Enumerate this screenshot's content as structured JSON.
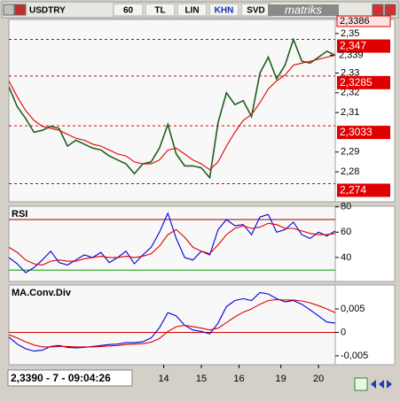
{
  "toolbar": {
    "symbol": "USDTRY",
    "items": [
      "60",
      "TL",
      "LIN",
      "KHN",
      "SVD"
    ],
    "brand": "matriks"
  },
  "status": "2,3390 - 7 - 09:04:26",
  "chart_data": [
    {
      "type": "line",
      "xlim": [
        0,
        39
      ],
      "ylim": [
        2.2648,
        2.3571
      ],
      "yticks": [
        {
          "value": 2.28,
          "label": "2,28"
        },
        {
          "value": 2.29,
          "label": "2,29"
        },
        {
          "value": 2.31,
          "label": "2,31"
        },
        {
          "value": 2.32,
          "label": "2,32"
        },
        {
          "value": 2.33,
          "label": "2,33"
        },
        {
          "value": 2.35,
          "label": "2,35"
        }
      ],
      "levels": [
        {
          "value": 2.347,
          "label": "2,347"
        },
        {
          "value": 2.3285,
          "label": "2,3285"
        },
        {
          "value": 2.3033,
          "label": "2,3033"
        },
        {
          "value": 2.274,
          "label": "2,274"
        }
      ],
      "level_color": "#e00000",
      "last_label": {
        "value": 2.339,
        "label": "2,339"
      },
      "cursor_label": "2,3386",
      "series": [
        {
          "color": "#1f5f1f",
          "values": [
            2.323,
            2.313,
            2.307,
            2.3,
            2.301,
            2.303,
            2.302,
            2.293,
            2.296,
            2.294,
            2.292,
            2.291,
            2.288,
            2.286,
            2.284,
            2.279,
            2.284,
            2.285,
            2.292,
            2.304,
            2.289,
            2.283,
            2.283,
            2.282,
            2.277,
            2.305,
            2.32,
            2.314,
            2.316,
            2.308,
            2.33,
            2.338,
            2.327,
            2.334,
            2.347,
            2.336,
            2.335,
            2.338,
            2.341,
            2.339
          ]
        },
        {
          "color": "#e00000",
          "values": [
            2.326,
            2.318,
            2.311,
            2.306,
            2.303,
            2.302,
            2.301,
            2.299,
            2.297,
            2.296,
            2.294,
            2.293,
            2.291,
            2.289,
            2.288,
            2.285,
            2.284,
            2.284,
            2.286,
            2.291,
            2.292,
            2.289,
            2.286,
            2.284,
            2.281,
            2.285,
            2.293,
            2.3,
            2.306,
            2.309,
            2.315,
            2.322,
            2.326,
            2.329,
            2.334,
            2.335,
            2.336,
            2.337,
            2.338,
            2.339
          ]
        }
      ]
    },
    {
      "type": "line",
      "title": "RSI",
      "xlim": [
        0,
        39
      ],
      "ylim": [
        21,
        80.5
      ],
      "yticks": [
        40,
        60,
        80
      ],
      "hlines": [
        {
          "value": 70,
          "color": "#990000"
        },
        {
          "value": 30,
          "color": "#009900"
        }
      ],
      "series": [
        {
          "color": "#0000e0",
          "values": [
            40,
            35,
            28,
            32,
            38,
            45,
            36,
            34,
            38,
            42,
            40,
            44,
            36,
            40,
            45,
            35,
            42,
            48,
            60,
            75,
            55,
            40,
            38,
            45,
            42,
            62,
            70,
            65,
            66,
            58,
            72,
            74,
            60,
            62,
            68,
            58,
            55,
            60,
            57,
            61
          ]
        },
        {
          "color": "#e00000",
          "values": [
            48,
            44,
            38,
            35,
            34,
            37,
            38,
            37,
            37,
            39,
            40,
            41,
            40,
            40,
            41,
            40,
            41,
            43,
            49,
            58,
            62,
            56,
            48,
            45,
            43,
            50,
            58,
            63,
            65,
            63,
            64,
            67,
            66,
            63,
            63,
            61,
            59,
            58,
            58,
            59
          ]
        }
      ]
    },
    {
      "type": "line",
      "title": "MA.Conv.Div",
      "xlim": [
        0,
        39
      ],
      "ylim": [
        -0.0069,
        0.0101
      ],
      "yticks": [
        {
          "value": 0.005,
          "label": "0,005"
        },
        0,
        {
          "value": -0.005,
          "label": "-0,005"
        }
      ],
      "hlines": [
        {
          "value": 0,
          "color": "#cc0000"
        }
      ],
      "xticks": [
        {
          "value": 18.5,
          "label": "14"
        },
        {
          "value": 23,
          "label": "15"
        },
        {
          "value": 27.5,
          "label": "16"
        },
        {
          "value": 32.5,
          "label": "19"
        },
        {
          "value": 37,
          "label": "20"
        }
      ],
      "series": [
        {
          "color": "#0000e0",
          "values": [
            -0.001,
            -0.0025,
            -0.0035,
            -0.004,
            -0.0038,
            -0.003,
            -0.0028,
            -0.0032,
            -0.0033,
            -0.0032,
            -0.003,
            -0.0028,
            -0.0026,
            -0.0025,
            -0.0022,
            -0.0022,
            -0.002,
            -0.0012,
            0.001,
            0.0042,
            0.0035,
            0.0015,
            0.0005,
            0.0002,
            -0.0003,
            0.002,
            0.0055,
            0.0068,
            0.0072,
            0.0068,
            0.0085,
            0.0082,
            0.0072,
            0.0065,
            0.0068,
            0.006,
            0.0048,
            0.0035,
            0.0022,
            0.002
          ]
        },
        {
          "color": "#e00000",
          "values": [
            -0.0005,
            -0.0012,
            -0.002,
            -0.0027,
            -0.0031,
            -0.0031,
            -0.003,
            -0.003,
            -0.0031,
            -0.0031,
            -0.0031,
            -0.003,
            -0.0029,
            -0.0028,
            -0.0026,
            -0.0025,
            -0.0024,
            -0.0021,
            -0.0013,
            0.0002,
            0.0012,
            0.0015,
            0.0012,
            0.0009,
            0.0005,
            0.0009,
            0.0021,
            0.0033,
            0.0043,
            0.005,
            0.006,
            0.0068,
            0.007,
            0.0069,
            0.0069,
            0.0067,
            0.0063,
            0.0057,
            0.005,
            0.0042
          ]
        }
      ]
    }
  ]
}
